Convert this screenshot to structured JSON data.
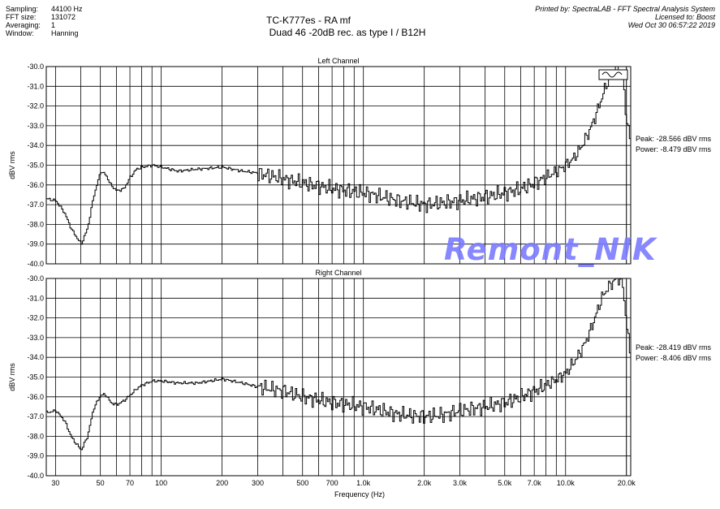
{
  "meta": [
    {
      "k": "Sampling:",
      "v": "44100 Hz"
    },
    {
      "k": "FFT size:",
      "v": "131072"
    },
    {
      "k": "Averaging:",
      "v": "1"
    },
    {
      "k": "Window:",
      "v": "Hanning"
    }
  ],
  "title_line1": "TC-K777es - RA mf",
  "title_line2": "Duad 46  -20dB  rec. as type I  /  B12H",
  "printed_by": [
    "Printed by: SpectraLAB - FFT Spectral Analysis System",
    "Licensed to: Boost",
    "Wed Oct 30 06:57:22 2019"
  ],
  "watermark": "Remont_NIK",
  "xlabel": "Frequency (Hz)",
  "colors": {
    "line": "#000000",
    "grid": "#000000",
    "watermark": "#7b7bff"
  },
  "chart_data": [
    {
      "type": "line",
      "title": "Left Channel",
      "ylabel": "dBV rms",
      "xscale": "log",
      "xlim": [
        27,
        21000
      ],
      "ylim": [
        -40,
        -30
      ],
      "xticks": [
        30,
        50,
        70,
        100,
        200,
        300,
        500,
        700,
        1000,
        2000,
        3000,
        5000,
        7000,
        10000,
        20000
      ],
      "xticklabels": [
        "30",
        "50",
        "70",
        "100",
        "200",
        "300",
        "500",
        "700",
        "1.0k",
        "2.0k",
        "3.0k",
        "5.0k",
        "7.0k",
        "10.0k",
        "20.0k"
      ],
      "yticks": [
        -30,
        -31,
        -32,
        -33,
        -34,
        -35,
        -36,
        -37,
        -38,
        -39,
        -40
      ],
      "yticklabels": [
        "-30.0",
        "-31.0",
        "-32.0",
        "-33.0",
        "-34.0",
        "-35.0",
        "-36.0",
        "-37.0",
        "-38.0",
        "-39.0",
        "-40.0"
      ],
      "peak": "Peak: -28.566 dBV rms",
      "power": "Power: -8.479 dBV rms",
      "series": [
        {
          "x": [
            27,
            30,
            33,
            36,
            40,
            43,
            46,
            50,
            53,
            56,
            60,
            65,
            70,
            75,
            80,
            90,
            100,
            120,
            150,
            200,
            250,
            300,
            400,
            500,
            700,
            1000,
            1500,
            2000,
            2500,
            3000,
            4000,
            5000,
            6000,
            7000,
            8000,
            9000,
            10000,
            11000,
            12000,
            13000,
            14000,
            15000,
            16000,
            17000,
            18000,
            19000,
            20000,
            21000
          ],
          "y": [
            -36.7,
            -36.8,
            -37.4,
            -38.3,
            -39.0,
            -38.2,
            -36.6,
            -35.3,
            -35.5,
            -36.0,
            -36.3,
            -36.2,
            -35.6,
            -35.2,
            -35.1,
            -35.0,
            -35.1,
            -35.3,
            -35.2,
            -35.1,
            -35.3,
            -35.4,
            -35.7,
            -35.9,
            -36.2,
            -36.4,
            -36.8,
            -37.0,
            -36.9,
            -36.8,
            -36.6,
            -36.4,
            -36.2,
            -35.9,
            -35.6,
            -35.3,
            -35.0,
            -34.6,
            -34.0,
            -33.3,
            -32.5,
            -31.6,
            -30.8,
            -30.3,
            -30.1,
            -30.4,
            -32.8,
            -34.0
          ]
        }
      ]
    },
    {
      "type": "line",
      "title": "Right Channel",
      "ylabel": "dBV rms",
      "xscale": "log",
      "xlim": [
        27,
        21000
      ],
      "ylim": [
        -40,
        -30
      ],
      "xticks": [
        30,
        50,
        70,
        100,
        200,
        300,
        500,
        700,
        1000,
        2000,
        3000,
        5000,
        7000,
        10000,
        20000
      ],
      "xticklabels": [
        "30",
        "50",
        "70",
        "100",
        "200",
        "300",
        "500",
        "700",
        "1.0k",
        "2.0k",
        "3.0k",
        "5.0k",
        "7.0k",
        "10.0k",
        "20.0k"
      ],
      "yticks": [
        -30,
        -31,
        -32,
        -33,
        -34,
        -35,
        -36,
        -37,
        -38,
        -39,
        -40
      ],
      "yticklabels": [
        "-30.0",
        "-31.0",
        "-32.0",
        "-33.0",
        "-34.0",
        "-35.0",
        "-36.0",
        "-37.0",
        "-38.0",
        "-39.0",
        "-40.0"
      ],
      "peak": "Peak: -28.419 dBV rms",
      "power": "Power: -8.406 dBV rms",
      "series": [
        {
          "x": [
            27,
            30,
            33,
            36,
            40,
            43,
            46,
            50,
            53,
            56,
            60,
            65,
            70,
            75,
            80,
            90,
            100,
            120,
            150,
            200,
            250,
            300,
            400,
            500,
            700,
            1000,
            1500,
            2000,
            2500,
            3000,
            4000,
            5000,
            6000,
            7000,
            8000,
            9000,
            10000,
            11000,
            12000,
            13000,
            14000,
            15000,
            16000,
            17000,
            18000,
            19000,
            20000,
            21000
          ],
          "y": [
            -36.8,
            -36.7,
            -37.2,
            -38.1,
            -38.7,
            -38.0,
            -36.6,
            -35.9,
            -35.9,
            -36.3,
            -36.4,
            -36.2,
            -35.9,
            -35.6,
            -35.4,
            -35.2,
            -35.2,
            -35.3,
            -35.3,
            -35.1,
            -35.3,
            -35.5,
            -35.7,
            -36.0,
            -36.3,
            -36.5,
            -36.9,
            -37.0,
            -36.9,
            -36.7,
            -36.5,
            -36.3,
            -36.0,
            -35.7,
            -35.4,
            -35.1,
            -34.8,
            -34.2,
            -33.6,
            -32.8,
            -31.9,
            -31.0,
            -30.5,
            -30.2,
            -30.0,
            -30.1,
            -32.5,
            -34.2
          ]
        }
      ]
    }
  ]
}
